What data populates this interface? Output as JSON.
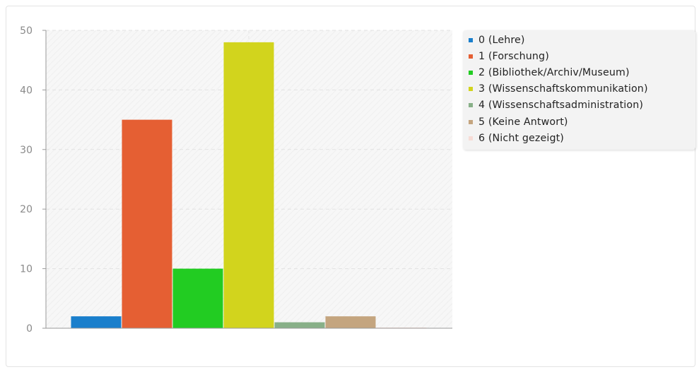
{
  "chart_data": {
    "type": "bar",
    "categories": [
      "0",
      "1",
      "2",
      "3",
      "4",
      "5",
      "6"
    ],
    "series": [
      {
        "name": "0 (Lehre)",
        "value": 2,
        "color": "#1a7fcc"
      },
      {
        "name": "1 (Forschung)",
        "value": 35,
        "color": "#e55f33"
      },
      {
        "name": "2 (Bibliothek/Archiv/Museum)",
        "value": 10,
        "color": "#22cc22"
      },
      {
        "name": "3 (Wissenschaftskommunikation)",
        "value": 48,
        "color": "#d2d41d"
      },
      {
        "name": "4 (Wissenschaftsadministration)",
        "value": 1,
        "color": "#88b088"
      },
      {
        "name": "5 (Keine Antwort)",
        "value": 2,
        "color": "#c4a57f"
      },
      {
        "name": "6 (Nicht gezeigt)",
        "value": 0,
        "color": "#f7dcd6"
      }
    ],
    "yticks": [
      "0",
      "10",
      "20",
      "30",
      "40",
      "50"
    ],
    "ylim": [
      0,
      50
    ],
    "grid": true,
    "legend_position": "right"
  }
}
